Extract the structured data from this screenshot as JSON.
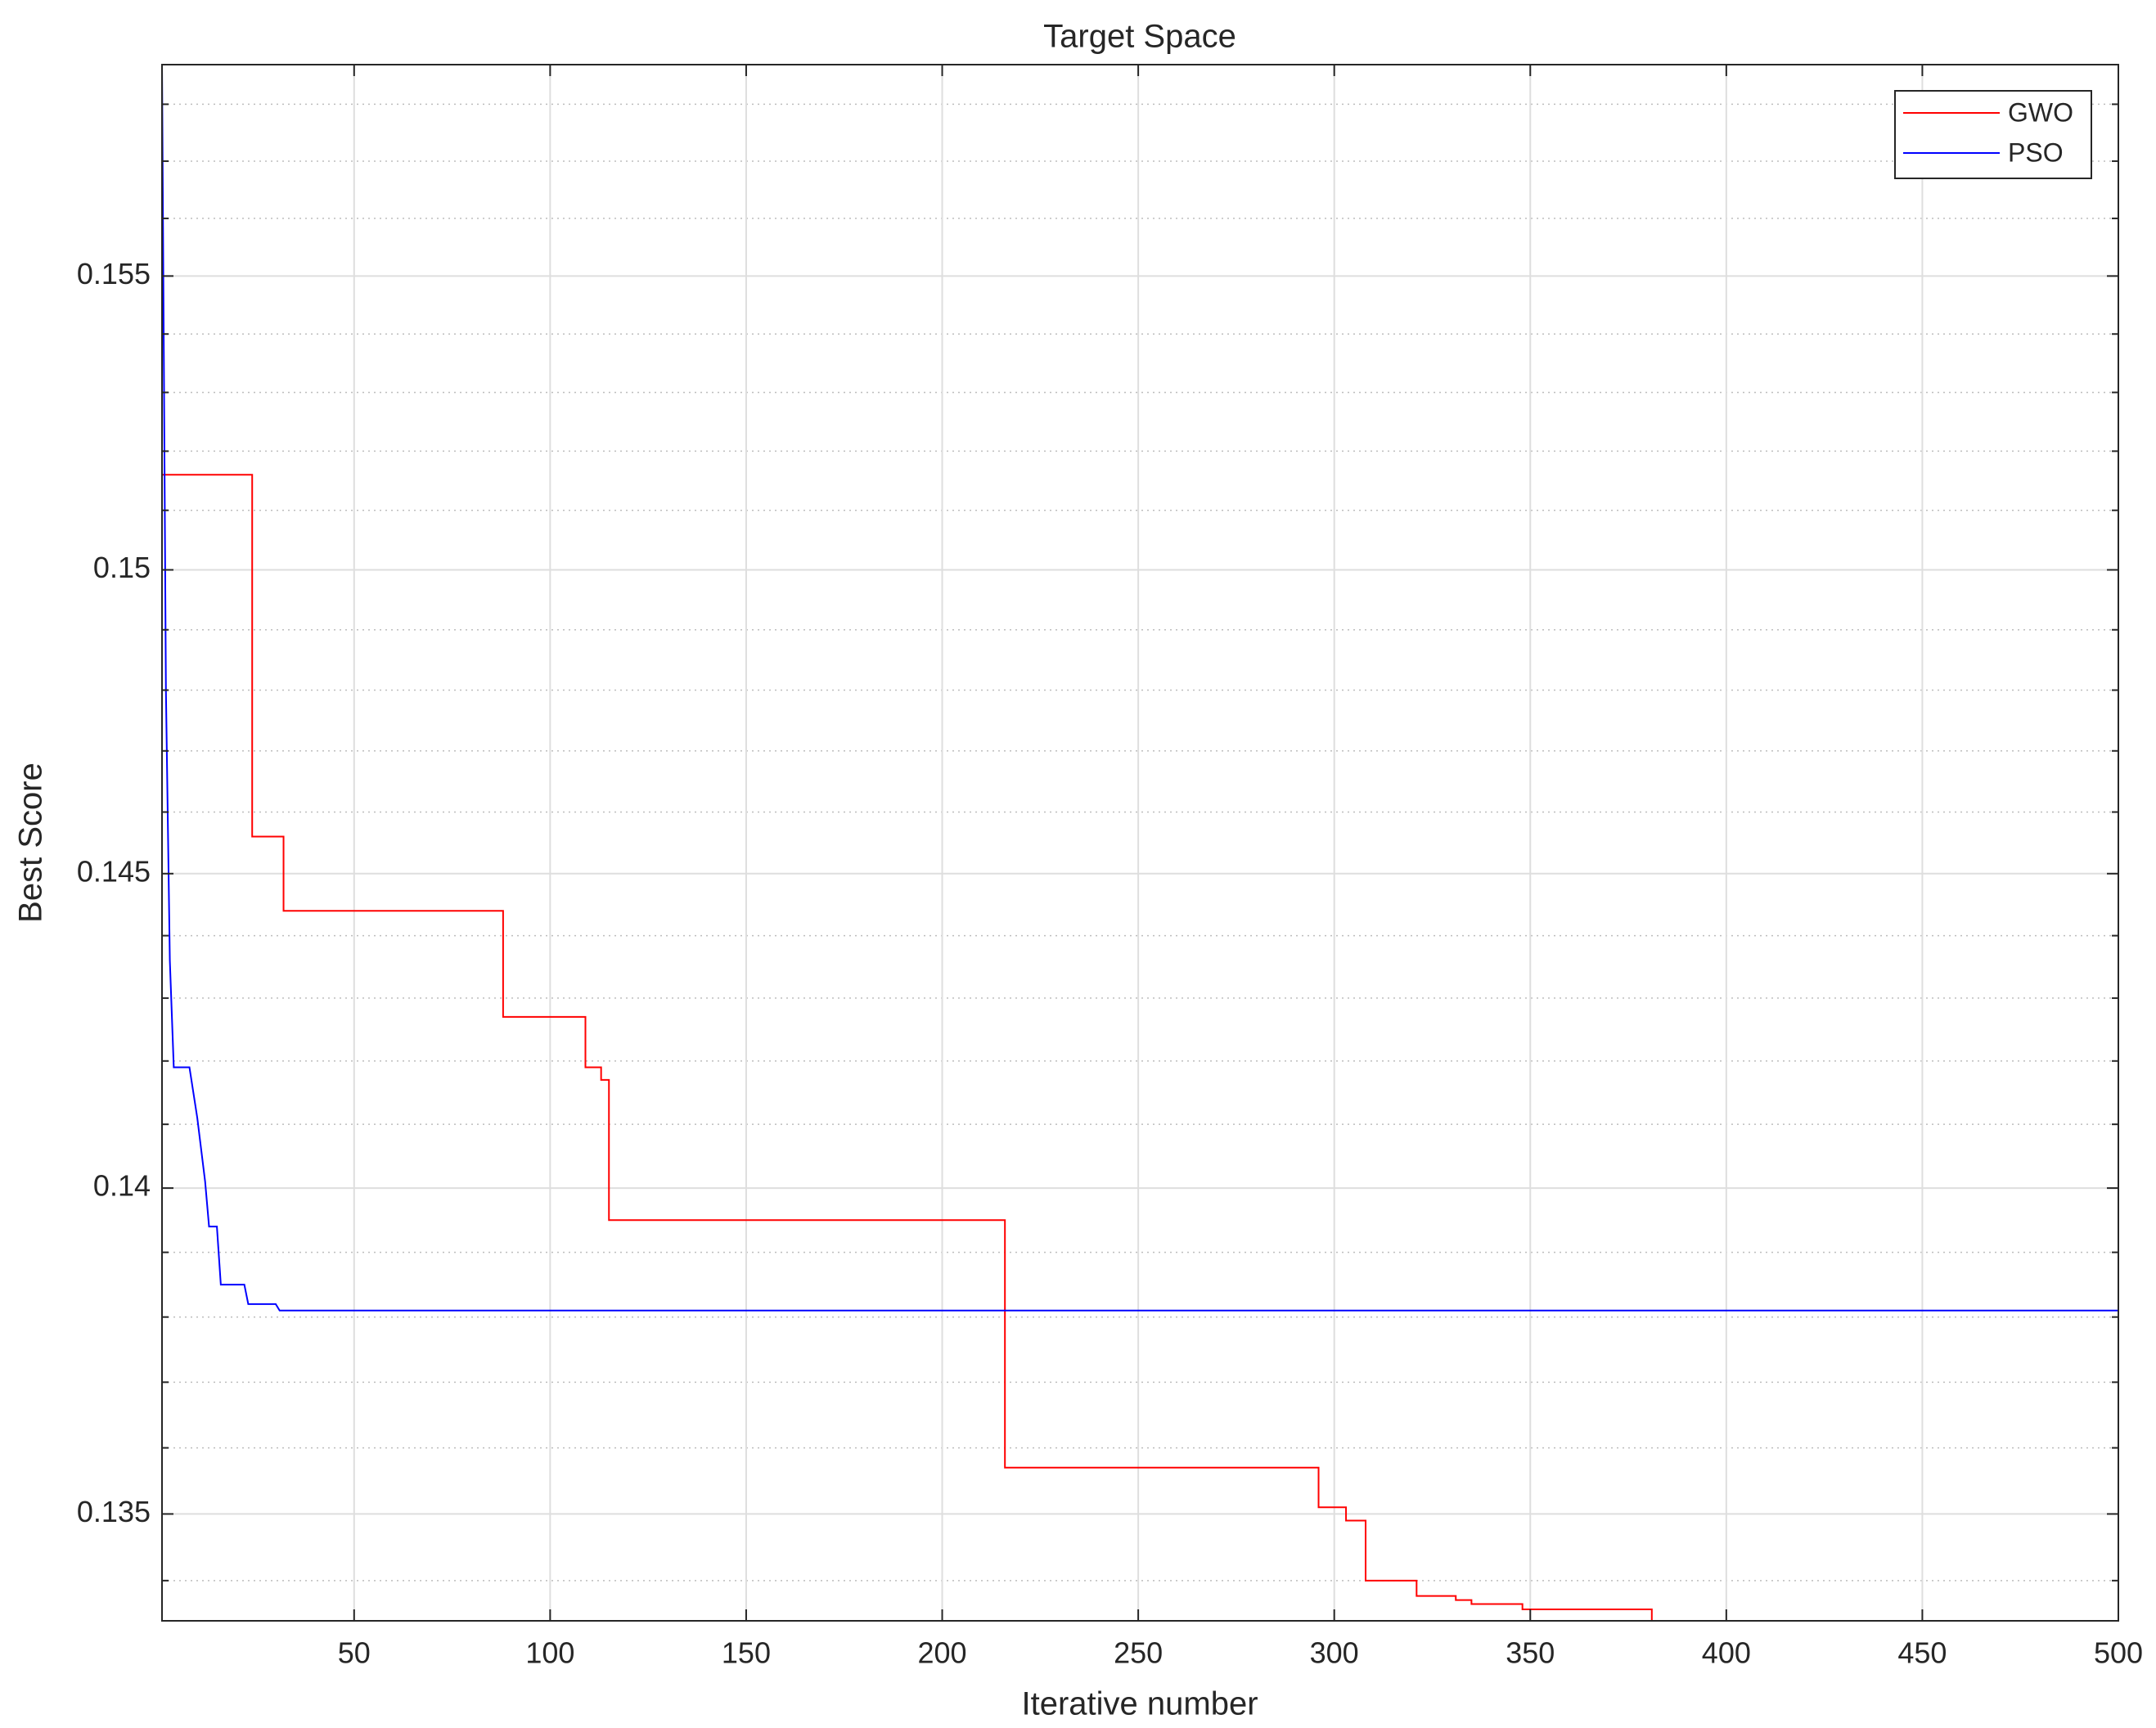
{
  "chart_data": {
    "type": "line",
    "title": "Target Space",
    "x_label": "Iterative number",
    "y_label": "Best Score",
    "yscale": "log",
    "grid": true,
    "legend": "northeast",
    "xlim": [
      1,
      500
    ],
    "xticks": [
      50,
      100,
      150,
      200,
      250,
      300,
      350,
      400,
      450,
      500
    ],
    "ylim": [
      0.1334,
      0.1587
    ],
    "yticks": [
      0.135,
      0.14,
      0.145,
      0.15,
      0.155
    ],
    "yminorticks": [
      0.134,
      0.136,
      0.137,
      0.138,
      0.139,
      0.141,
      0.142,
      0.143,
      0.144,
      0.146,
      0.147,
      0.148,
      0.149,
      0.151,
      0.152,
      0.153,
      0.154,
      0.156,
      0.157,
      0.158
    ],
    "series": [
      {
        "name": "GWO",
        "color": "#ff0000",
        "x": [
          1,
          24,
          24,
          32,
          32,
          88,
          88,
          109,
          109,
          113,
          113,
          115,
          115,
          216,
          216,
          296,
          296,
          303,
          303,
          308,
          308,
          321,
          321,
          331,
          331,
          335,
          335,
          348,
          348,
          381,
          381,
          500
        ],
        "values": [
          0.1516,
          0.1516,
          0.1456,
          0.1456,
          0.1444,
          0.1444,
          0.1427,
          0.1427,
          0.1419,
          0.1419,
          0.1417,
          0.1417,
          0.1395,
          0.1395,
          0.1357,
          0.1357,
          0.1351,
          0.1351,
          0.1349,
          0.1349,
          0.134,
          0.134,
          0.13377,
          0.13377,
          0.13371,
          0.13371,
          0.13365,
          0.13365,
          0.13357,
          0.13357,
          0.1334,
          0.1334
        ]
      },
      {
        "name": "PSO",
        "color": "#0000ff",
        "x": [
          1,
          2,
          3,
          4,
          8,
          10,
          12,
          13,
          15,
          16,
          22,
          23,
          30,
          31,
          500
        ],
        "values": [
          0.1587,
          0.148,
          0.1436,
          0.1419,
          0.1419,
          0.1411,
          0.1401,
          0.1394,
          0.1394,
          0.1385,
          0.1385,
          0.1382,
          0.1382,
          0.1381,
          0.1381
        ]
      }
    ]
  }
}
